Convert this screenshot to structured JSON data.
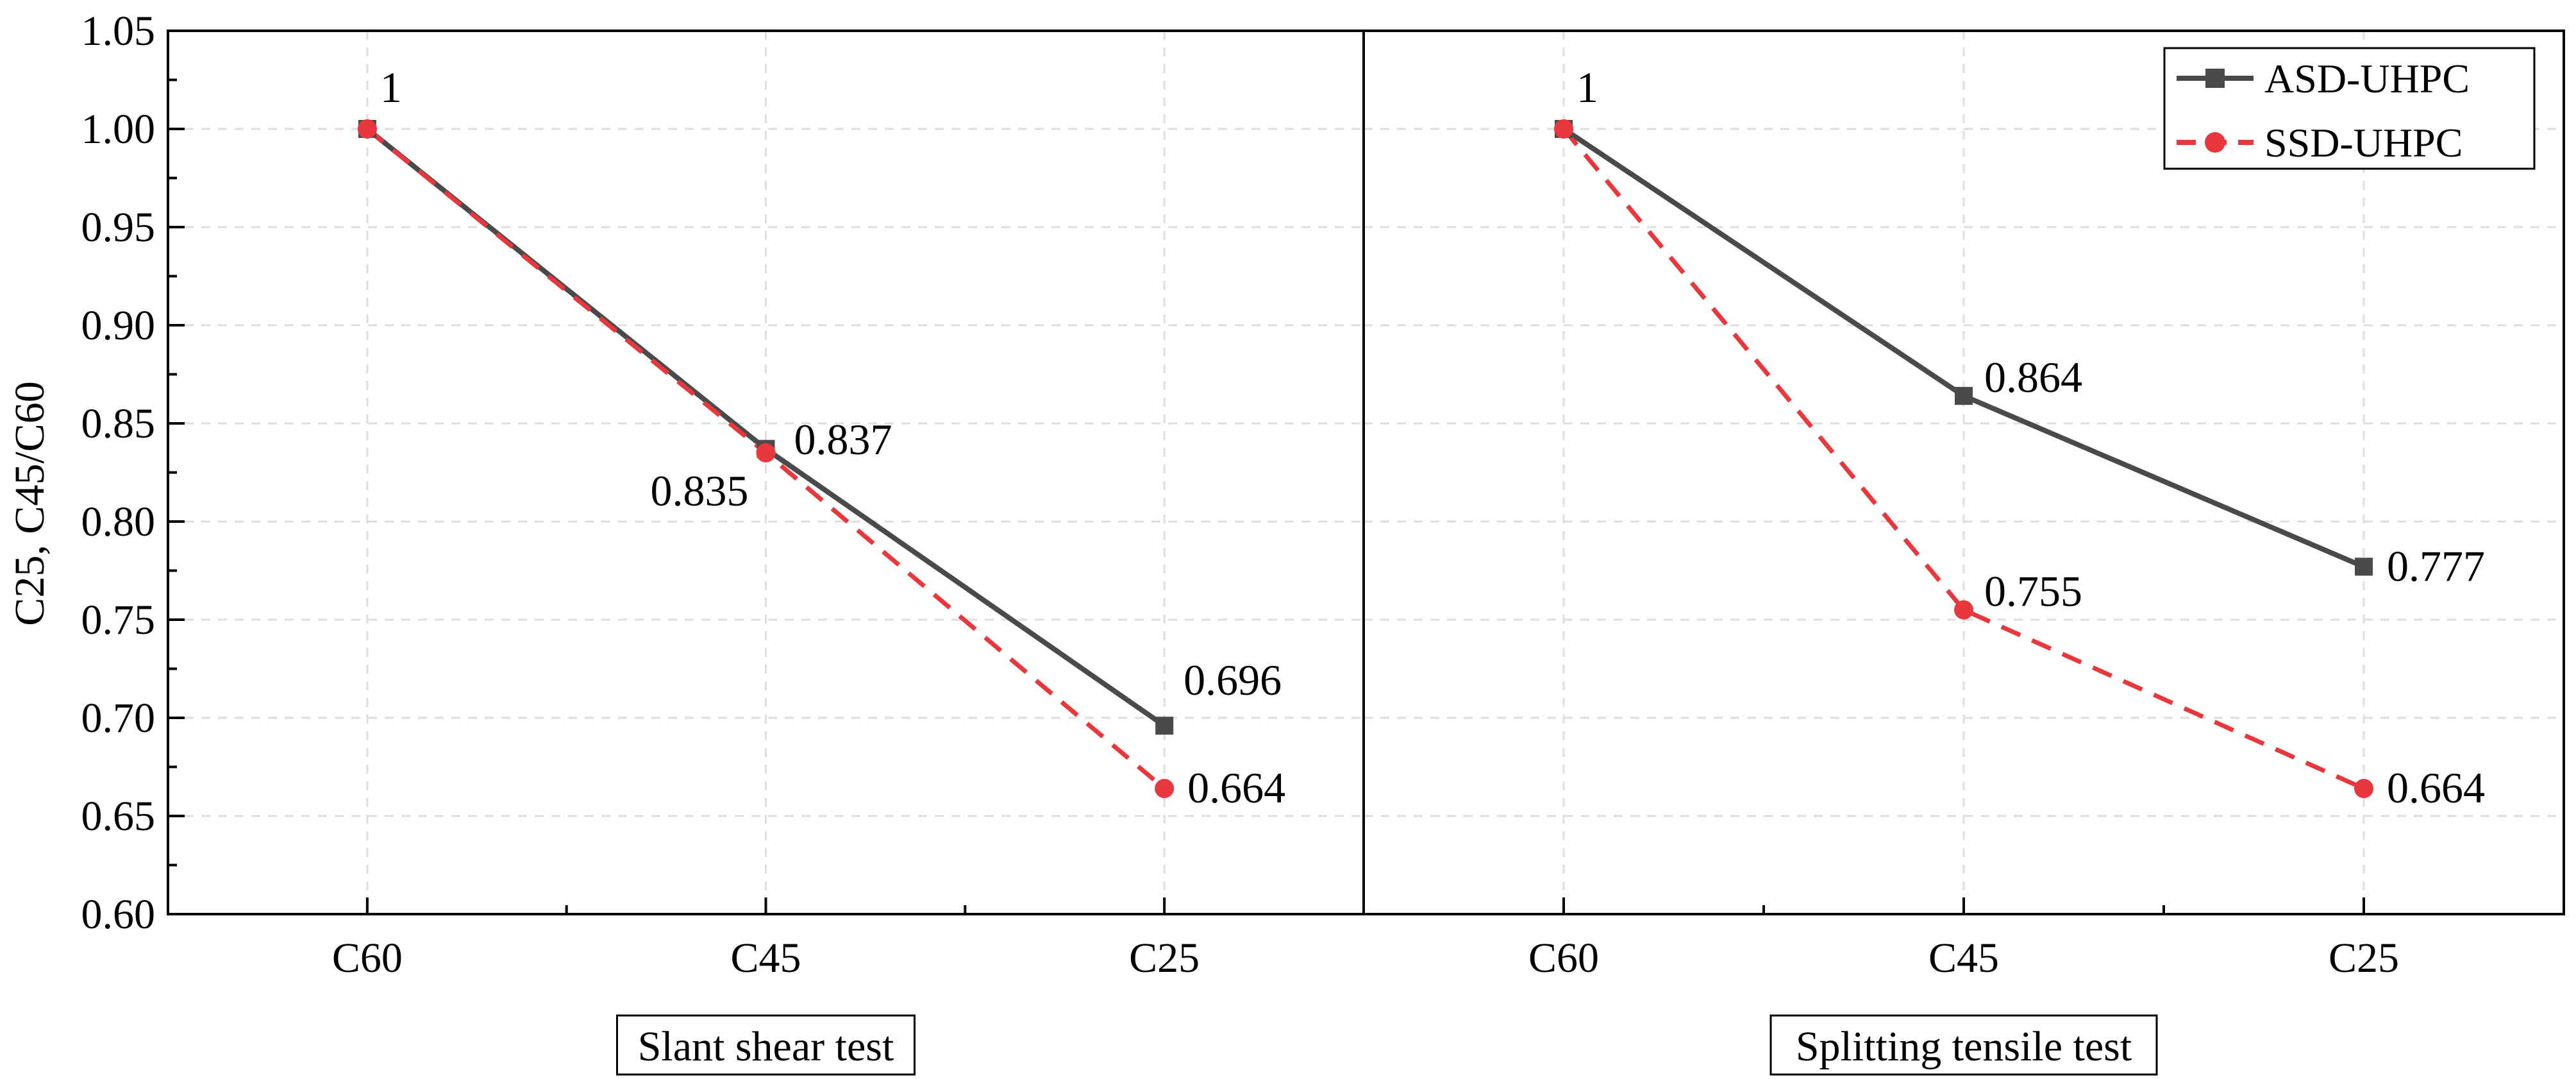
{
  "chart_data": {
    "type": "line",
    "ylabel": "C25, C45/C60",
    "ylim": [
      0.6,
      1.05
    ],
    "yticks": [
      "0.60",
      "0.65",
      "0.70",
      "0.75",
      "0.80",
      "0.85",
      "0.90",
      "0.95",
      "1.00",
      "1.05"
    ],
    "categories": [
      "C60",
      "C45",
      "C25"
    ],
    "grid": true,
    "legend": {
      "placement": "top-right",
      "entries": [
        {
          "name": "ASD-UHPC",
          "color": "#4a4a4a",
          "style": "solid",
          "marker": "square"
        },
        {
          "name": "SSD-UHPC",
          "color": "#e8383d",
          "style": "dashed",
          "marker": "circle"
        }
      ]
    },
    "panels": [
      {
        "title": "Slant shear test",
        "series": [
          {
            "name": "ASD-UHPC",
            "values": [
              1.0,
              0.837,
              0.696
            ],
            "labels": [
              "1",
              "0.837",
              "0.696"
            ]
          },
          {
            "name": "SSD-UHPC",
            "values": [
              1.0,
              0.835,
              0.664
            ],
            "labels": [
              "",
              "0.835",
              "0.664"
            ]
          }
        ]
      },
      {
        "title": "Splitting tensile test",
        "series": [
          {
            "name": "ASD-UHPC",
            "values": [
              1.0,
              0.864,
              0.777
            ],
            "labels": [
              "1",
              "0.864",
              "0.777"
            ]
          },
          {
            "name": "SSD-UHPC",
            "values": [
              1.0,
              0.755,
              0.664
            ],
            "labels": [
              "",
              "0.755",
              "0.664"
            ]
          }
        ]
      }
    ]
  }
}
